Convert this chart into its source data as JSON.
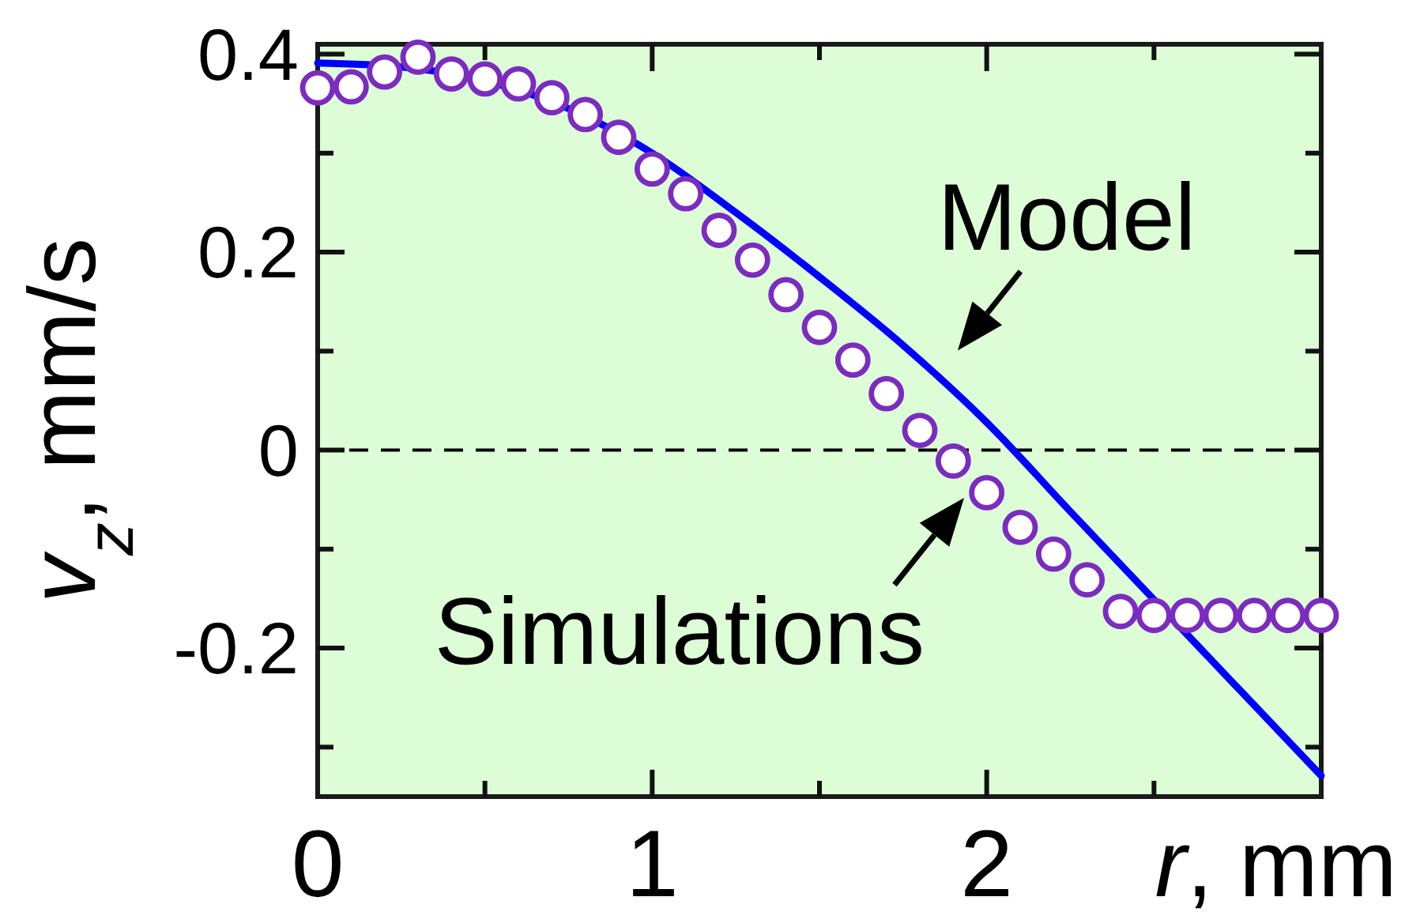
{
  "chart_data": {
    "type": "line",
    "xlabel": "r, mm",
    "ylabel": "v$_{z}$, mm/s",
    "xlim": [
      0,
      3
    ],
    "ylim": [
      -0.35,
      0.41
    ],
    "xticks": [
      0,
      {
        "value": 0.5,
        "label": null
      },
      1,
      {
        "value": 1.5,
        "label": null
      },
      2,
      {
        "value": 2.5,
        "label": null
      }
    ],
    "yticks": [
      {
        "value": -0.3,
        "label": null
      },
      -0.2,
      {
        "value": -0.1,
        "label": null
      },
      0,
      {
        "value": 0.1,
        "label": null
      },
      0.2,
      {
        "value": 0.3,
        "label": null
      },
      0.4
    ],
    "ref_lines": [
      {
        "axis": "y",
        "value": 0,
        "color": "#000000",
        "line_style": "dashed"
      }
    ],
    "bands": [
      {
        "axis": "y",
        "from": -0.35,
        "to": 0.41,
        "color": "#ddfdd6"
      }
    ],
    "annotations": [
      "Model",
      "Simulations"
    ],
    "series": [
      {
        "type": "line",
        "color": "#0000ff",
        "x": [
          0,
          0.25,
          0.5,
          0.75,
          1,
          1.25,
          1.5,
          1.75,
          2,
          2.25,
          2.5,
          2.75,
          3
        ],
        "values": [
          0.391,
          0.387,
          0.373,
          0.345,
          0.3,
          0.24,
          0.175,
          0.106,
          0.028,
          -0.062,
          -0.151,
          -0.24,
          -0.329
        ]
      },
      {
        "type": "scatter",
        "marker": "circle",
        "color": "#7b2cbf",
        "x": [
          0,
          0.1,
          0.2,
          0.3,
          0.4,
          0.5,
          0.6,
          0.7,
          0.8,
          0.9,
          1,
          1.1,
          1.2,
          1.3,
          1.4,
          1.5,
          1.6,
          1.7,
          1.8,
          1.9,
          2,
          2.1,
          2.2,
          2.3,
          2.4,
          2.5,
          2.6,
          2.7,
          2.8,
          2.9,
          3
        ],
        "values": [
          0.366,
          0.367,
          0.382,
          0.397,
          0.38,
          0.375,
          0.37,
          0.356,
          0.339,
          0.316,
          0.284,
          0.259,
          0.222,
          0.192,
          0.157,
          0.124,
          0.091,
          0.057,
          0.02,
          -0.011,
          -0.043,
          -0.078,
          -0.105,
          -0.131,
          -0.163,
          -0.167,
          -0.167,
          -0.167,
          -0.167,
          -0.167,
          -0.167
        ]
      }
    ]
  }
}
